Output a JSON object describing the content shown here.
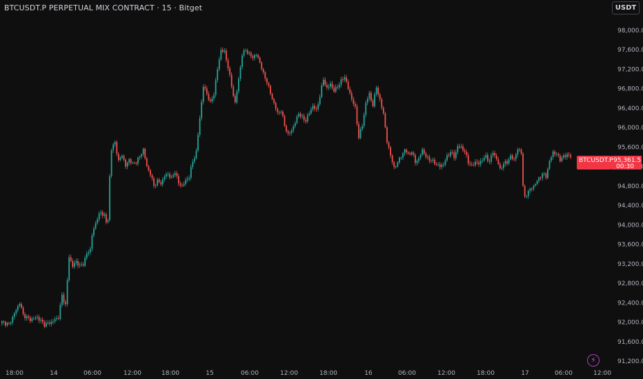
{
  "header": {
    "title": "BTCUSDT.P PERPETUAL MIX CONTRACT · 15 · Bitget"
  },
  "toolbar": {
    "currency": "USDT"
  },
  "icons": {
    "bolt": "lightning-bolt-icon"
  },
  "colors": {
    "up": "#26a69a",
    "down": "#ef5350",
    "background": "#0f0f0f",
    "tag": "#f23645"
  },
  "price_tag": {
    "symbol": "BTCUSDT.P",
    "price": "95,361.5",
    "countdown": "00:30"
  },
  "chart_data": {
    "type": "candlestick",
    "y_ticks": [
      "98,000.0",
      "97,600.0",
      "97,200.0",
      "96,800.0",
      "96,400.0",
      "96,000.0",
      "95,600.0",
      "95,200.0",
      "94,800.0",
      "94,400.0",
      "94,000.0",
      "93,600.0",
      "93,200.0",
      "92,800.0",
      "92,400.0",
      "92,000.0",
      "91,600.0",
      "91,200.0"
    ],
    "y_tick_values": [
      98000,
      97600,
      97200,
      96800,
      96400,
      96000,
      95600,
      95200,
      94800,
      94400,
      94000,
      93600,
      93200,
      92800,
      92400,
      92000,
      91600,
      91200
    ],
    "x_ticks": [
      "18:00",
      "14",
      "06:00",
      "12:00",
      "18:00",
      "15",
      "06:00",
      "12:00",
      "18:00",
      "16",
      "06:00",
      "12:00",
      "18:00",
      "17",
      "06:00",
      "12:00"
    ],
    "ylim": [
      91100,
      98300
    ],
    "last_price": 95361.5,
    "close_path": [
      [
        0,
        92000
      ],
      [
        4,
        91950
      ],
      [
        8,
        92250
      ],
      [
        10,
        92400
      ],
      [
        12,
        92150
      ],
      [
        16,
        92050
      ],
      [
        20,
        92100
      ],
      [
        24,
        91950
      ],
      [
        28,
        92000
      ],
      [
        32,
        92100
      ],
      [
        34,
        92550
      ],
      [
        36,
        92350
      ],
      [
        38,
        93350
      ],
      [
        40,
        93150
      ],
      [
        42,
        93250
      ],
      [
        44,
        93150
      ],
      [
        46,
        93200
      ],
      [
        48,
        93400
      ],
      [
        50,
        93500
      ],
      [
        51,
        93800
      ],
      [
        52,
        93900
      ],
      [
        54,
        94150
      ],
      [
        56,
        94250
      ],
      [
        58,
        94200
      ],
      [
        59,
        94050
      ],
      [
        60,
        94100
      ],
      [
        61,
        95000
      ],
      [
        62,
        95550
      ],
      [
        64,
        95700
      ],
      [
        66,
        95300
      ],
      [
        68,
        95450
      ],
      [
        70,
        95200
      ],
      [
        72,
        95350
      ],
      [
        74,
        95250
      ],
      [
        76,
        95300
      ],
      [
        78,
        95400
      ],
      [
        80,
        95550
      ],
      [
        82,
        95200
      ],
      [
        84,
        95050
      ],
      [
        86,
        94800
      ],
      [
        88,
        94900
      ],
      [
        90,
        94850
      ],
      [
        92,
        95000
      ],
      [
        94,
        95050
      ],
      [
        96,
        94950
      ],
      [
        98,
        95100
      ],
      [
        100,
        94850
      ],
      [
        102,
        94800
      ],
      [
        104,
        94900
      ],
      [
        106,
        95000
      ],
      [
        108,
        95300
      ],
      [
        110,
        95500
      ],
      [
        112,
        96200
      ],
      [
        114,
        96850
      ],
      [
        116,
        96700
      ],
      [
        118,
        96500
      ],
      [
        120,
        96700
      ],
      [
        122,
        97200
      ],
      [
        124,
        97600
      ],
      [
        126,
        97550
      ],
      [
        128,
        97250
      ],
      [
        130,
        96850
      ],
      [
        132,
        96500
      ],
      [
        134,
        97000
      ],
      [
        136,
        97500
      ],
      [
        138,
        97600
      ],
      [
        140,
        97500
      ],
      [
        142,
        97450
      ],
      [
        144,
        97500
      ],
      [
        146,
        97350
      ],
      [
        148,
        97100
      ],
      [
        150,
        96950
      ],
      [
        152,
        96700
      ],
      [
        154,
        96500
      ],
      [
        156,
        96300
      ],
      [
        158,
        96350
      ],
      [
        160,
        96050
      ],
      [
        162,
        95850
      ],
      [
        164,
        95950
      ],
      [
        166,
        96100
      ],
      [
        168,
        96300
      ],
      [
        170,
        96200
      ],
      [
        172,
        96150
      ],
      [
        174,
        96300
      ],
      [
        176,
        96450
      ],
      [
        178,
        96350
      ],
      [
        180,
        96650
      ],
      [
        182,
        97000
      ],
      [
        184,
        96800
      ],
      [
        186,
        96900
      ],
      [
        188,
        96750
      ],
      [
        190,
        96850
      ],
      [
        192,
        96950
      ],
      [
        194,
        97050
      ],
      [
        196,
        96800
      ],
      [
        198,
        96600
      ],
      [
        200,
        96400
      ],
      [
        202,
        95800
      ],
      [
        204,
        96050
      ],
      [
        206,
        96500
      ],
      [
        208,
        96700
      ],
      [
        210,
        96450
      ],
      [
        212,
        96850
      ],
      [
        214,
        96550
      ],
      [
        216,
        96300
      ],
      [
        218,
        95700
      ],
      [
        220,
        95450
      ],
      [
        222,
        95150
      ],
      [
        224,
        95300
      ],
      [
        226,
        95400
      ],
      [
        228,
        95550
      ],
      [
        230,
        95450
      ],
      [
        232,
        95500
      ],
      [
        234,
        95300
      ],
      [
        236,
        95350
      ],
      [
        238,
        95550
      ],
      [
        240,
        95400
      ],
      [
        242,
        95350
      ],
      [
        244,
        95300
      ],
      [
        246,
        95250
      ],
      [
        248,
        95200
      ],
      [
        250,
        95250
      ],
      [
        252,
        95400
      ],
      [
        254,
        95500
      ],
      [
        256,
        95400
      ],
      [
        258,
        95600
      ],
      [
        260,
        95600
      ],
      [
        262,
        95500
      ],
      [
        264,
        95300
      ],
      [
        266,
        95200
      ],
      [
        268,
        95300
      ],
      [
        270,
        95250
      ],
      [
        272,
        95350
      ],
      [
        274,
        95400
      ],
      [
        276,
        95300
      ],
      [
        278,
        95500
      ],
      [
        280,
        95350
      ],
      [
        282,
        95150
      ],
      [
        284,
        95250
      ],
      [
        286,
        95300
      ],
      [
        288,
        95400
      ],
      [
        290,
        95350
      ],
      [
        292,
        95550
      ],
      [
        294,
        95500
      ],
      [
        295,
        94800
      ],
      [
        296,
        94550
      ],
      [
        298,
        94700
      ],
      [
        300,
        94750
      ],
      [
        302,
        94850
      ],
      [
        304,
        94950
      ],
      [
        306,
        95050
      ],
      [
        308,
        95000
      ],
      [
        310,
        95300
      ],
      [
        312,
        95500
      ],
      [
        314,
        95450
      ],
      [
        316,
        95350
      ],
      [
        318,
        95400
      ],
      [
        320,
        95450
      ],
      [
        322,
        95400
      ]
    ]
  }
}
